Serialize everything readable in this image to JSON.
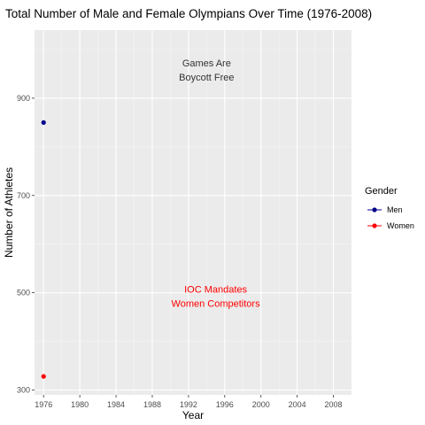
{
  "chart_data": {
    "type": "scatter",
    "title": "Total Number of Male and Female Olympians Over Time (1976-2008)",
    "xlabel": "Year",
    "ylabel": "Number of Athletes",
    "xlim": [
      1975,
      2010
    ],
    "ylim": [
      290,
      1040
    ],
    "x_ticks": [
      1976,
      1980,
      1984,
      1988,
      1992,
      1996,
      2000,
      2004,
      2008
    ],
    "y_ticks": [
      300,
      500,
      700,
      900
    ],
    "grid": true,
    "legend": {
      "title": "Gender",
      "position": "right"
    },
    "series": [
      {
        "name": "Men",
        "color": "#00008b",
        "points": [
          {
            "x": 1976,
            "y": 850
          }
        ]
      },
      {
        "name": "Women",
        "color": "#ff0000",
        "points": [
          {
            "x": 1976,
            "y": 328
          }
        ]
      }
    ],
    "annotations": [
      {
        "lines": [
          "Games Are",
          "Boycott Free"
        ],
        "x": 1994,
        "y": 965,
        "color": "#333333"
      },
      {
        "lines": [
          "IOC Mandates",
          "Women Competitors"
        ],
        "x": 1995,
        "y": 500,
        "color": "#ff0000"
      }
    ]
  }
}
